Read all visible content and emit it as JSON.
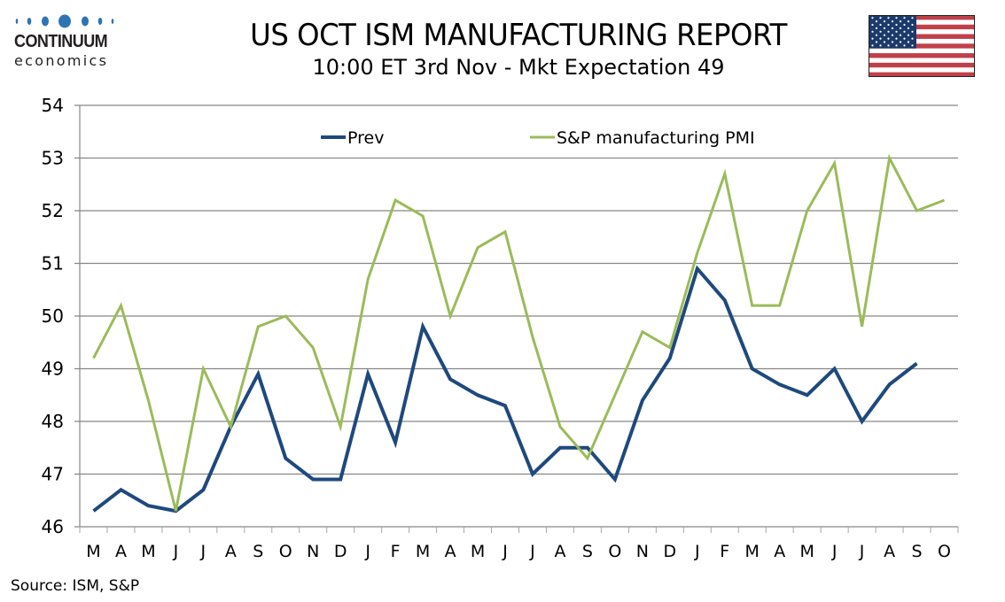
{
  "header": {
    "logo_name": "CONTINUUM",
    "logo_sub": "economics",
    "title": "US OCT ISM MANUFACTURING REPORT",
    "subtitle": "10:00 ET 3rd Nov - Mkt Expectation 49",
    "flag_icon": "us-flag-icon"
  },
  "footer": {
    "source": "Source: ISM, S&P"
  },
  "colors": {
    "prev": "#1f497d",
    "sp": "#9bbb59",
    "grid": "#868686",
    "logo_blue": "#2e74b5"
  },
  "chart_data": {
    "type": "line",
    "title": "US OCT ISM MANUFACTURING REPORT",
    "subtitle": "10:00 ET 3rd Nov - Mkt Expectation 49",
    "xlabel": "",
    "ylabel": "",
    "ylim": [
      46,
      54
    ],
    "yticks": [
      46,
      47,
      48,
      49,
      50,
      51,
      52,
      53,
      54
    ],
    "grid": true,
    "legend_position": "top-center",
    "categories": [
      "M",
      "A",
      "M",
      "J",
      "J",
      "A",
      "S",
      "O",
      "N",
      "D",
      "J",
      "F",
      "M",
      "A",
      "M",
      "J",
      "J",
      "A",
      "S",
      "O",
      "N",
      "D",
      "J",
      "F",
      "M",
      "A",
      "M",
      "J",
      "J",
      "A",
      "S",
      "O"
    ],
    "series": [
      {
        "name": "Prev",
        "color": "#1f497d",
        "values": [
          46.3,
          46.7,
          46.4,
          46.3,
          46.7,
          47.9,
          48.9,
          47.3,
          46.9,
          46.9,
          48.9,
          47.6,
          49.8,
          48.8,
          48.5,
          48.3,
          47.0,
          47.5,
          47.5,
          46.9,
          48.4,
          49.2,
          50.9,
          50.3,
          49.0,
          48.7,
          48.5,
          49.0,
          48.0,
          48.7,
          49.1,
          null
        ]
      },
      {
        "name": "S&P manufacturing PMI",
        "color": "#9bbb59",
        "values": [
          49.2,
          50.2,
          48.4,
          46.3,
          49.0,
          47.9,
          49.8,
          50.0,
          49.4,
          47.9,
          50.7,
          52.2,
          51.9,
          50.0,
          51.3,
          51.6,
          49.6,
          47.9,
          47.3,
          48.5,
          49.7,
          49.4,
          51.2,
          52.7,
          50.2,
          50.2,
          52.0,
          52.9,
          49.8,
          53.0,
          52.0,
          52.2
        ]
      }
    ]
  }
}
